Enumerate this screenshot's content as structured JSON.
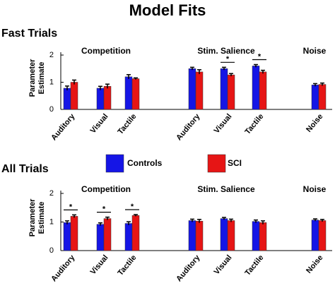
{
  "chart_data": {
    "type": "bar",
    "title": "Model Fits",
    "ylabel": [
      "Parameter",
      "Estimate"
    ],
    "ylim": [
      0,
      2
    ],
    "yticks": [
      0,
      1,
      2
    ],
    "series": [
      {
        "name": "Controls",
        "color": "#1515e6"
      },
      {
        "name": "SCI",
        "color": "#e61515"
      }
    ],
    "panels": [
      {
        "title": "Fast Trials",
        "groups": [
          {
            "name": "Competition",
            "categories": [
              "Auditory",
              "Visual",
              "Tactile"
            ],
            "annotations": []
          },
          {
            "name": "Stim. Salience",
            "categories": [
              "Auditory",
              "Visual",
              "Tactile"
            ],
            "annotations": [
              {
                "text": "*",
                "category": "Visual"
              },
              {
                "text": "*",
                "category": "Tactile"
              }
            ]
          },
          {
            "name": "Noise",
            "categories": [
              "Noise"
            ],
            "annotations": []
          }
        ],
        "values": [
          [
            0.78,
            0.78,
            1.2,
            1.5,
            1.5,
            1.6,
            0.9
          ],
          [
            1.0,
            0.85,
            1.13,
            1.38,
            1.27,
            1.38,
            0.92
          ]
        ],
        "errors": [
          [
            0.08,
            0.07,
            0.08,
            0.05,
            0.05,
            0.05,
            0.05
          ],
          [
            0.08,
            0.08,
            0.03,
            0.08,
            0.05,
            0.06,
            0.05
          ]
        ]
      },
      {
        "title": "All Trials",
        "groups": [
          {
            "name": "Competition",
            "categories": [
              "Auditory",
              "Visual",
              "Tactile"
            ],
            "annotations": [
              {
                "text": "*",
                "category": "Auditory"
              },
              {
                "text": "*",
                "category": "Visual"
              },
              {
                "text": "*",
                "category": "Tactile"
              }
            ]
          },
          {
            "name": "Stim. Salience",
            "categories": [
              "Auditory",
              "Visual",
              "Tactile"
            ],
            "annotations": []
          },
          {
            "name": "Noise",
            "categories": [
              "Noise"
            ],
            "annotations": []
          }
        ],
        "values": [
          [
            0.98,
            0.92,
            0.95,
            1.05,
            1.12,
            1.02,
            1.07
          ],
          [
            1.2,
            1.12,
            1.23,
            1.03,
            1.05,
            0.98,
            1.05
          ]
        ],
        "errors": [
          [
            0.06,
            0.05,
            0.06,
            0.05,
            0.04,
            0.05,
            0.04
          ],
          [
            0.05,
            0.05,
            0.03,
            0.06,
            0.05,
            0.06,
            0.04
          ]
        ]
      }
    ]
  }
}
